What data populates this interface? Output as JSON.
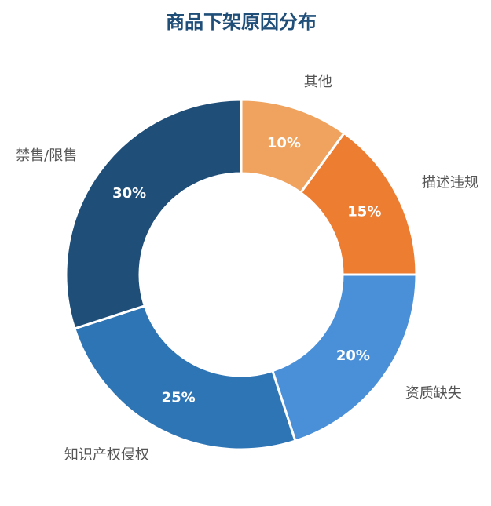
{
  "chart_data": {
    "type": "pie",
    "variant": "donut",
    "title": "商品下架原因分布",
    "title_color": "#1f4e79",
    "categories": [
      "其他",
      "描述违规",
      "资质缺失",
      "知识产权侵权",
      "禁售/限售"
    ],
    "values": [
      10,
      15,
      20,
      25,
      30
    ],
    "value_labels": [
      "10%",
      "15%",
      "20%",
      "25%",
      "30%"
    ],
    "colors": [
      "#f0a35e",
      "#ed7d31",
      "#4a90d9",
      "#2e75b6",
      "#1f4e79"
    ],
    "legend": "none"
  }
}
